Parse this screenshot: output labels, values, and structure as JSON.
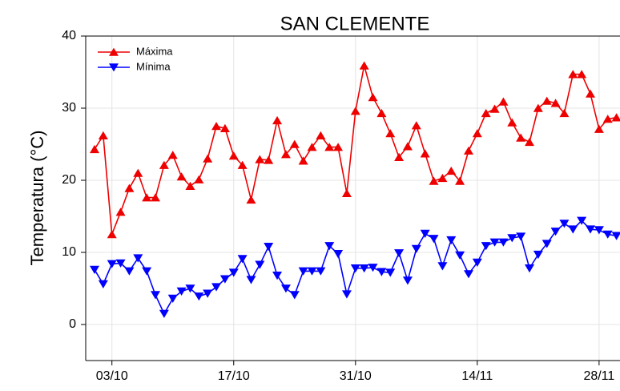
{
  "chart_data": {
    "type": "line",
    "title": "SAN CLEMENTE",
    "y_label": "Temperatura (°C)",
    "categories": [
      null,
      null,
      "03/10",
      null,
      null,
      null,
      null,
      null,
      null,
      null,
      null,
      null,
      null,
      null,
      null,
      null,
      "17/10",
      null,
      null,
      null,
      null,
      null,
      null,
      null,
      null,
      null,
      null,
      null,
      null,
      null,
      "31/10",
      null,
      null,
      null,
      null,
      null,
      null,
      null,
      null,
      null,
      null,
      null,
      null,
      null,
      "14/11",
      null,
      null,
      null,
      null,
      null,
      null,
      null,
      null,
      null,
      null,
      null,
      null,
      null,
      "28/11",
      null,
      null
    ],
    "series": [
      {
        "name": "Máxima",
        "color": "#ee0000",
        "marker": "triangle-up",
        "values": [
          24.3,
          26.2,
          12.5,
          15.6,
          18.9,
          21.0,
          17.6,
          17.6,
          22.1,
          23.5,
          20.5,
          19.2,
          20.1,
          23.0,
          27.5,
          27.2,
          23.4,
          22.1,
          17.3,
          22.9,
          22.8,
          28.3,
          23.6,
          25.0,
          22.7,
          24.6,
          26.2,
          24.6,
          24.6,
          18.2,
          29.6,
          35.9,
          31.5,
          29.3,
          26.5,
          23.2,
          24.7,
          27.6,
          23.7,
          19.9,
          20.3,
          21.3,
          19.9,
          24.1,
          26.5,
          29.3,
          29.9,
          30.9,
          28.0,
          25.9,
          25.3,
          30.0,
          31.0,
          30.7,
          29.3,
          34.7,
          34.7,
          32.0,
          27.1,
          28.5,
          28.7
        ]
      },
      {
        "name": "Mínima",
        "color": "#0000ff",
        "marker": "triangle-down",
        "values": [
          7.6,
          5.6,
          8.4,
          8.5,
          7.4,
          9.2,
          7.4,
          4.1,
          1.5,
          3.6,
          4.6,
          5.0,
          3.9,
          4.3,
          5.2,
          6.3,
          7.2,
          9.1,
          6.2,
          8.3,
          10.8,
          6.8,
          5.0,
          4.1,
          7.4,
          7.4,
          7.4,
          10.9,
          9.8,
          4.2,
          7.8,
          7.8,
          7.9,
          7.3,
          7.2,
          9.9,
          6.1,
          10.5,
          12.6,
          11.9,
          8.1,
          11.7,
          9.6,
          7.0,
          8.6,
          10.9,
          11.4,
          11.4,
          12.0,
          12.2,
          7.8,
          9.7,
          11.2,
          12.9,
          14.0,
          13.2,
          14.4,
          13.2,
          13.1,
          12.5,
          12.3
        ]
      }
    ],
    "ylim": [
      -5,
      40
    ],
    "yticks": [
      0,
      10,
      20,
      30,
      40
    ],
    "grid": true,
    "legend": "upper left"
  }
}
